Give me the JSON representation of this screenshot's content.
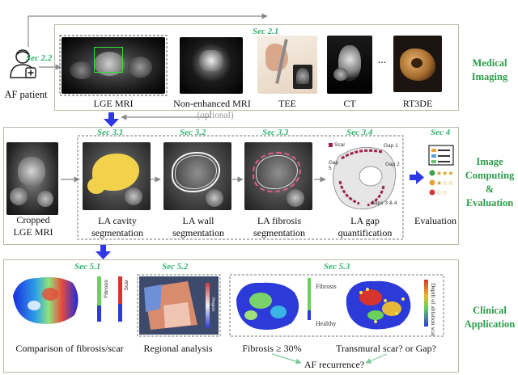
{
  "patient": {
    "label": "AF patient",
    "icon": "doctor-patient-icon"
  },
  "panel1": {
    "title": "Medical\nImaging",
    "sec_patient": "Sec 2.2",
    "sec_modalities": "Sec 2.1",
    "modalities": [
      {
        "label": "LGE MRI"
      },
      {
        "label": "Non-enhanced MRI"
      },
      {
        "label": "TEE"
      },
      {
        "label": "CT"
      },
      {
        "label": "RT3DE"
      }
    ],
    "ellipsis": "...",
    "optional": "(optional)"
  },
  "panel2": {
    "title": "Image\nComputing\n&\nEvaluation",
    "cropped": "Cropped\nLGE MRI",
    "steps": [
      {
        "sec": "Sec 3.1",
        "label": "LA cavity\nsegmentation"
      },
      {
        "sec": "Sec 3.2",
        "label": "LA wall\nsegmentation"
      },
      {
        "sec": "Sec 3.3",
        "label": "LA fibrosis\nsegmentation"
      },
      {
        "sec": "Sec 3.4",
        "label": "LA gap\nquantification"
      }
    ],
    "gap_labels": {
      "scar": "Scar",
      "gap1": "Gap 1",
      "gap2": "Gap 2",
      "gap5": "Gap\n5",
      "gap34": "Gaps 3 & 4"
    },
    "eval_sec": "Sec 4",
    "eval_label": "Evaluation"
  },
  "panel3": {
    "title": "Clinical\nApplication",
    "sec51": "Sec 5.1",
    "sec52": "Sec 5.2",
    "sec53": "Sec 5.3",
    "comparison_label": "Comparison of fibrosis/scar",
    "fibrosis_bar": "Fibrosis",
    "scar_bar": "Scar",
    "regional_label": "Regional analysis",
    "region_bar": "Region",
    "fibrosis_legend": "Fibrosis",
    "healthy_legend": "Healthy",
    "depth_label": "Depth of ablation scar",
    "fibrosis_threshold": "Fibrosis ≥ 30%",
    "transmural": "Transmural scar? or Gap?",
    "af_recurrence": "AF recurrence?"
  },
  "colors": {
    "accent_green": "#2a9d4a",
    "sec_green": "#2fb46e",
    "arrow_blue": "#2f36e6",
    "panel_border": "#b9b9a8"
  }
}
